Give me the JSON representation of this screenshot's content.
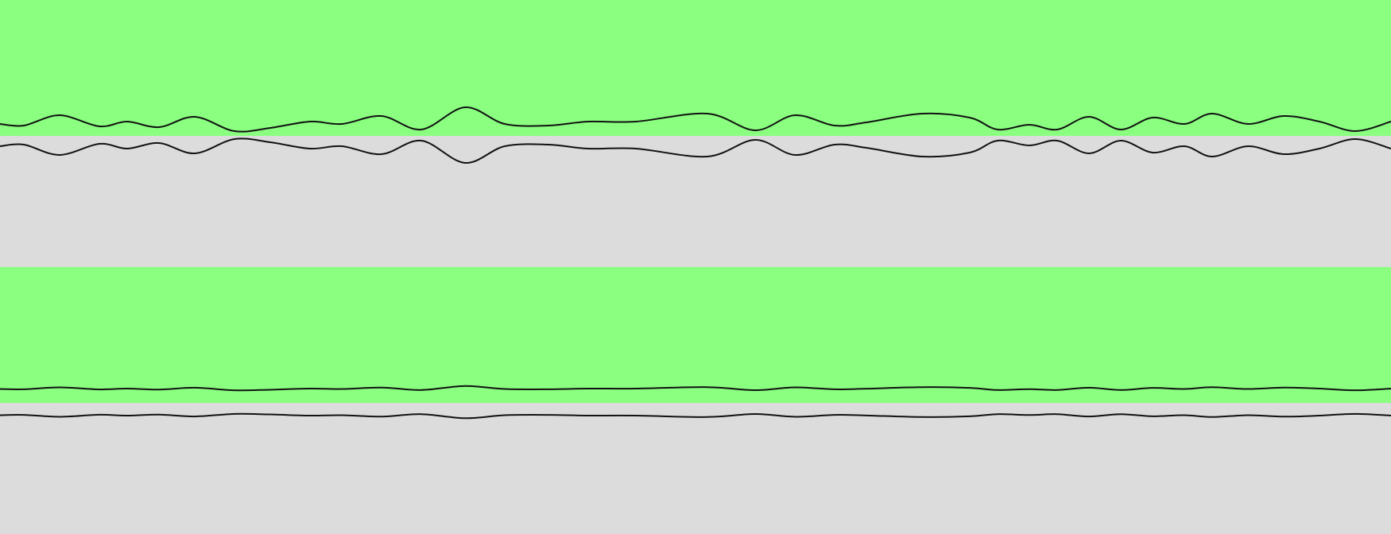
{
  "colors": {
    "background": "#dcdcdc",
    "band": "#8aff80",
    "line": "#111111"
  },
  "figure": {
    "panels": [
      {
        "name": "panel-top",
        "amplitude_level": "high",
        "band": "green",
        "lower_region": "gray"
      },
      {
        "name": "panel-bottom",
        "amplitude_level": "low",
        "band": "green",
        "lower_region": "gray"
      }
    ]
  }
}
